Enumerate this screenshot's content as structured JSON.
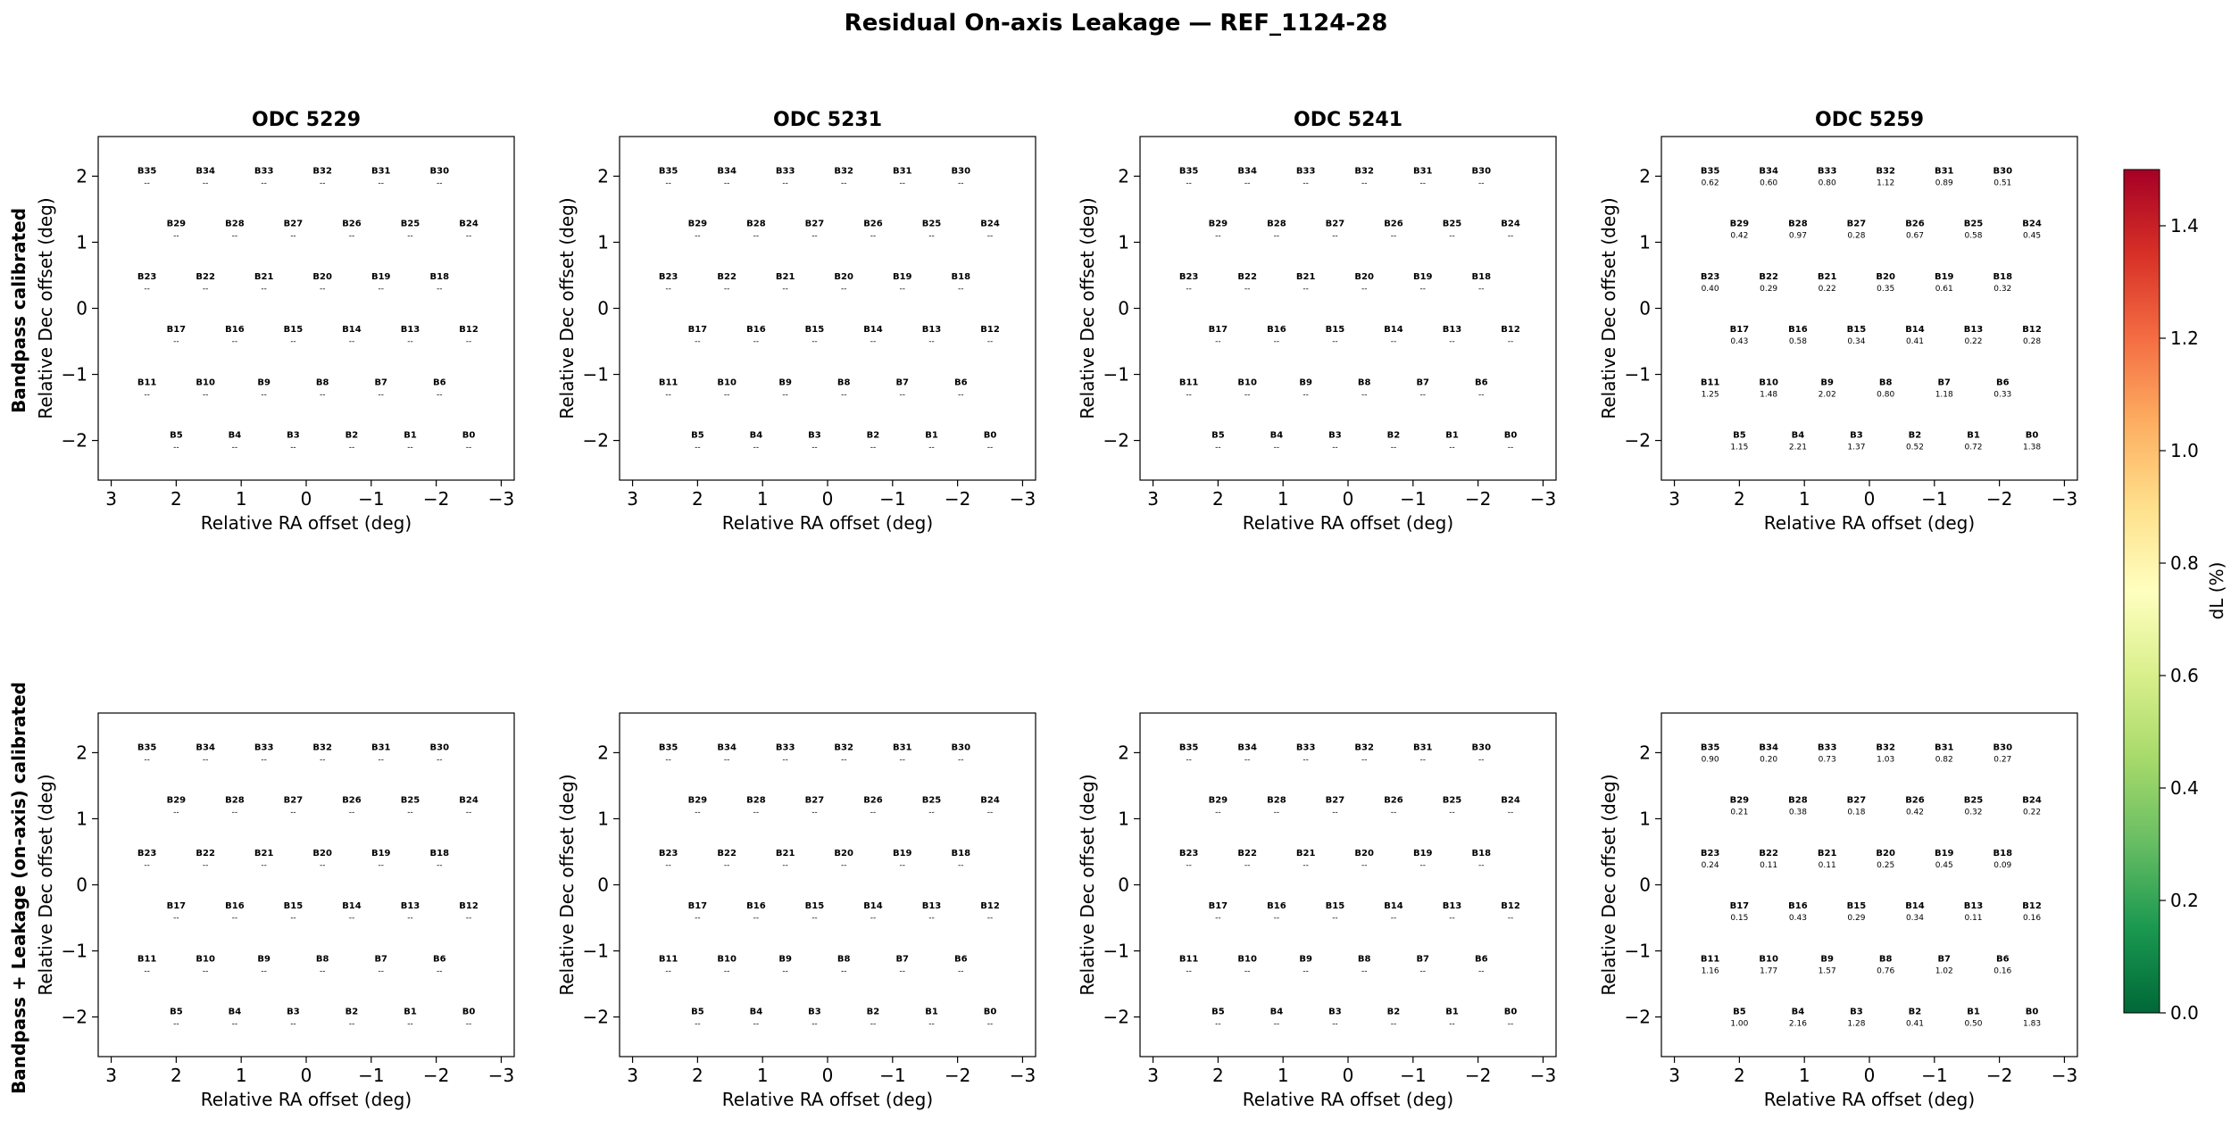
{
  "chart_data": {
    "type": "heatmap",
    "title": "Residual On-axis Leakage — REF_1124-28",
    "xlabel": "Relative RA offset (deg)",
    "ylabel": "Relative Dec offset (deg)",
    "xlim": [
      3.2,
      -3.2
    ],
    "ylim": [
      -2.6,
      2.6
    ],
    "xticks": [
      3,
      2,
      1,
      0,
      -1,
      -2,
      -3
    ],
    "yticks": [
      2,
      1,
      0,
      -1,
      -2
    ],
    "colorbar": {
      "label": "dL  (%)",
      "range": [
        0.0,
        1.5
      ],
      "ticks": [
        0.0,
        0.2,
        0.4,
        0.6,
        0.8,
        1.0,
        1.2,
        1.4
      ],
      "colormap": "RdYlGn_r"
    },
    "row_labels": [
      "Bandpass calibrated",
      "Bandpass + Leakage (on-axis) calibrated"
    ],
    "columns": [
      "ODC 5229",
      "ODC 5231",
      "ODC 5241",
      "ODC 5259"
    ],
    "missing_marker": "--",
    "beams": [
      {
        "name": "B0",
        "x": -2.5,
        "y": -2.0
      },
      {
        "name": "B1",
        "x": -1.6,
        "y": -2.0
      },
      {
        "name": "B2",
        "x": -0.7,
        "y": -2.0
      },
      {
        "name": "B3",
        "x": 0.2,
        "y": -2.0
      },
      {
        "name": "B4",
        "x": 1.1,
        "y": -2.0
      },
      {
        "name": "B5",
        "x": 2.0,
        "y": -2.0
      },
      {
        "name": "B6",
        "x": -2.05,
        "y": -1.2
      },
      {
        "name": "B7",
        "x": -1.15,
        "y": -1.2
      },
      {
        "name": "B8",
        "x": -0.25,
        "y": -1.2
      },
      {
        "name": "B9",
        "x": 0.65,
        "y": -1.2
      },
      {
        "name": "B10",
        "x": 1.55,
        "y": -1.2
      },
      {
        "name": "B11",
        "x": 2.45,
        "y": -1.2
      },
      {
        "name": "B12",
        "x": -2.5,
        "y": -0.4
      },
      {
        "name": "B13",
        "x": -1.6,
        "y": -0.4
      },
      {
        "name": "B14",
        "x": -0.7,
        "y": -0.4
      },
      {
        "name": "B15",
        "x": 0.2,
        "y": -0.4
      },
      {
        "name": "B16",
        "x": 1.1,
        "y": -0.4
      },
      {
        "name": "B17",
        "x": 2.0,
        "y": -0.4
      },
      {
        "name": "B18",
        "x": -2.05,
        "y": 0.4
      },
      {
        "name": "B19",
        "x": -1.15,
        "y": 0.4
      },
      {
        "name": "B20",
        "x": -0.25,
        "y": 0.4
      },
      {
        "name": "B21",
        "x": 0.65,
        "y": 0.4
      },
      {
        "name": "B22",
        "x": 1.55,
        "y": 0.4
      },
      {
        "name": "B23",
        "x": 2.45,
        "y": 0.4
      },
      {
        "name": "B24",
        "x": -2.5,
        "y": 1.2
      },
      {
        "name": "B25",
        "x": -1.6,
        "y": 1.2
      },
      {
        "name": "B26",
        "x": -0.7,
        "y": 1.2
      },
      {
        "name": "B27",
        "x": 0.2,
        "y": 1.2
      },
      {
        "name": "B28",
        "x": 1.1,
        "y": 1.2
      },
      {
        "name": "B29",
        "x": 2.0,
        "y": 1.2
      },
      {
        "name": "B30",
        "x": -2.05,
        "y": 2.0
      },
      {
        "name": "B31",
        "x": -1.15,
        "y": 2.0
      },
      {
        "name": "B32",
        "x": -0.25,
        "y": 2.0
      },
      {
        "name": "B33",
        "x": 0.65,
        "y": 2.0
      },
      {
        "name": "B34",
        "x": 1.55,
        "y": 2.0
      },
      {
        "name": "B35",
        "x": 2.45,
        "y": 2.0
      }
    ],
    "beam_radius": 0.45,
    "panels": [
      {
        "row": 0,
        "col": 0,
        "values": null
      },
      {
        "row": 0,
        "col": 1,
        "values": null
      },
      {
        "row": 0,
        "col": 2,
        "values": null
      },
      {
        "row": 0,
        "col": 3,
        "values": {
          "B0": "1.38",
          "B1": "0.72",
          "B2": "0.52",
          "B3": "1.37",
          "B4": "2.21",
          "B5": "1.15",
          "B6": "0.33",
          "B7": "1.18",
          "B8": "0.80",
          "B9": "2.02",
          "B10": "1.48",
          "B11": "1.25",
          "B12": "0.28",
          "B13": "0.22",
          "B14": "0.41",
          "B15": "0.34",
          "B16": "0.58",
          "B17": "0.43",
          "B18": "0.32",
          "B19": "0.61",
          "B20": "0.35",
          "B21": "0.22",
          "B22": "0.29",
          "B23": "0.40",
          "B24": "0.45",
          "B25": "0.58",
          "B26": "0.67",
          "B27": "0.28",
          "B28": "0.97",
          "B29": "0.42",
          "B30": "0.51",
          "B31": "0.89",
          "B32": "1.12",
          "B33": "0.80",
          "B34": "0.60",
          "B35": "0.62"
        }
      },
      {
        "row": 1,
        "col": 0,
        "values": null
      },
      {
        "row": 1,
        "col": 1,
        "values": null
      },
      {
        "row": 1,
        "col": 2,
        "values": null
      },
      {
        "row": 1,
        "col": 3,
        "values": {
          "B0": "1.83",
          "B1": "0.50",
          "B2": "0.41",
          "B3": "1.28",
          "B4": "2.16",
          "B5": "1.00",
          "B6": "0.16",
          "B7": "1.02",
          "B8": "0.76",
          "B9": "1.57",
          "B10": "1.77",
          "B11": "1.16",
          "B12": "0.16",
          "B13": "0.11",
          "B14": "0.34",
          "B15": "0.29",
          "B16": "0.43",
          "B17": "0.15",
          "B18": "0.09",
          "B19": "0.45",
          "B20": "0.25",
          "B21": "0.11",
          "B22": "0.11",
          "B23": "0.24",
          "B24": "0.22",
          "B25": "0.32",
          "B26": "0.42",
          "B27": "0.18",
          "B28": "0.38",
          "B29": "0.21",
          "B30": "0.27",
          "B31": "0.82",
          "B32": "1.03",
          "B33": "0.73",
          "B34": "0.20",
          "B35": "0.90"
        }
      }
    ]
  }
}
